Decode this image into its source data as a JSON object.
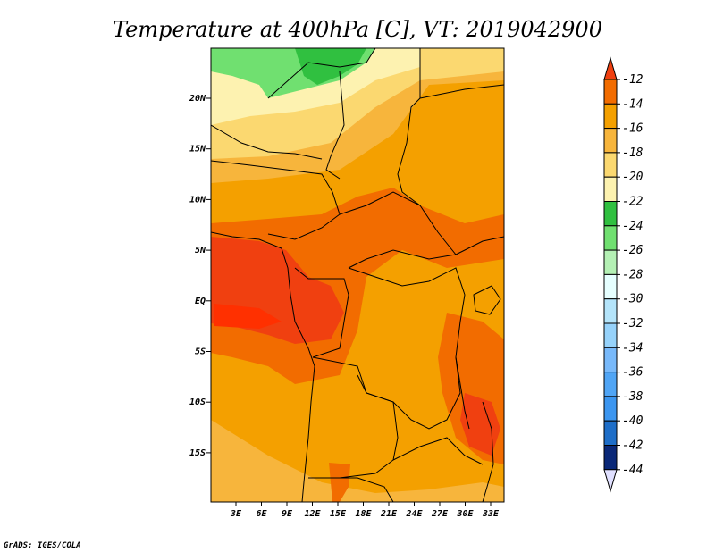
{
  "title": "Temperature at 400hPa [C], VT: 2019042900",
  "credit": "GrADS: IGES/COLA",
  "axes": {
    "lon_labels": [
      "3E",
      "6E",
      "9E",
      "12E",
      "15E",
      "18E",
      "21E",
      "24E",
      "27E",
      "30E",
      "33E"
    ],
    "lat_labels": [
      "20N",
      "15N",
      "10N",
      "5N",
      "EQ",
      "5S",
      "10S",
      "15S"
    ]
  },
  "colorbar": {
    "labels": [
      "-12",
      "-14",
      "-16",
      "-18",
      "-20",
      "-22",
      "-24",
      "-26",
      "-28",
      "-30",
      "-32",
      "-34",
      "-36",
      "-38",
      "-40",
      "-42",
      "-44"
    ],
    "colors": [
      "#f04010",
      "#f26c00",
      "#f4a000",
      "#f7b53c",
      "#fbd870",
      "#fdf2b0",
      "#30c040",
      "#70e070",
      "#b4f0b4",
      "#e6ffff",
      "#b4e4fa",
      "#96d2fa",
      "#78b9fa",
      "#50a5f5",
      "#3c96f0",
      "#1e6ec8",
      "#0a2878"
    ],
    "top_color": "#f04010",
    "bottom_color": "#e0e0ff"
  },
  "chart_data": {
    "type": "heatmap",
    "title": "Temperature at 400hPa [C], VT: 2019042900",
    "variable": "Temperature at 400hPa",
    "units": "C",
    "valid_time": "2019042900",
    "lon_range": [
      0,
      34
    ],
    "lat_range": [
      -19,
      24
    ],
    "levels": [
      -44,
      -42,
      -40,
      -38,
      -36,
      -34,
      -32,
      -30,
      -28,
      -26,
      -24,
      -22,
      -20,
      -18,
      -16,
      -14,
      -12
    ],
    "regions": [
      {
        "name": "north-sahara-green",
        "value_range": [
          -26,
          -24
        ]
      },
      {
        "name": "sahara-pale",
        "value_range": [
          -22,
          -18
        ]
      },
      {
        "name": "central-africa",
        "value_range": [
          -16,
          -14
        ]
      },
      {
        "name": "gulf-of-guinea",
        "value_range": [
          -14,
          -12
        ]
      }
    ]
  }
}
